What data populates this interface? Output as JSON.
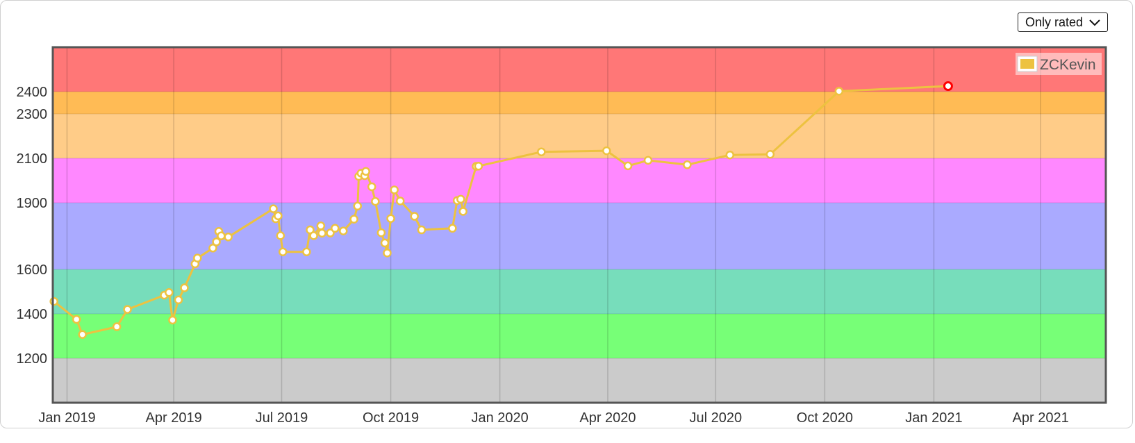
{
  "filter_select": {
    "value": "Only rated",
    "options": [
      "Only rated"
    ]
  },
  "chart_data": {
    "type": "line",
    "legend": {
      "entries": [
        "ZCKevin"
      ],
      "placement": "top-right"
    },
    "grid": true,
    "x_axis": {
      "type": "date",
      "range": [
        "2018-12-20",
        "2021-05-26"
      ],
      "tick_labels": [
        "Jan 2019",
        "Apr 2019",
        "Jul 2019",
        "Oct 2019",
        "Jan 2020",
        "Apr 2020",
        "Jul 2020",
        "Oct 2020",
        "Jan 2021",
        "Apr 2021"
      ],
      "ticks": [
        "2019-01-01",
        "2019-04-01",
        "2019-07-01",
        "2019-10-01",
        "2020-01-01",
        "2020-04-01",
        "2020-07-01",
        "2020-10-01",
        "2021-01-01",
        "2021-04-01"
      ]
    },
    "y_axis": {
      "range": [
        1000,
        2600
      ],
      "tick_labels": [
        "1200",
        "1400",
        "1600",
        "1900",
        "2100",
        "2300",
        "2400"
      ],
      "ticks": [
        1200,
        1400,
        1600,
        1900,
        2100,
        2300,
        2400
      ]
    },
    "rating_bands": [
      {
        "from": 0,
        "to": 1200,
        "color": "#cbcbcb"
      },
      {
        "from": 1200,
        "to": 1400,
        "color": "#77ff77"
      },
      {
        "from": 1400,
        "to": 1600,
        "color": "#77ddbb"
      },
      {
        "from": 1600,
        "to": 1900,
        "color": "#aaaaff"
      },
      {
        "from": 1900,
        "to": 2100,
        "color": "#ff88ff"
      },
      {
        "from": 2100,
        "to": 2300,
        "color": "#ffcc88"
      },
      {
        "from": 2300,
        "to": 2400,
        "color": "#ffbb55"
      },
      {
        "from": 2400,
        "to": 5000,
        "color": "#ff7777"
      }
    ],
    "series_color": "#edc240",
    "highlight_color": "#ff0000",
    "series": [
      {
        "name": "ZCKevin",
        "points": [
          [
            "2018-12-21",
            1456
          ],
          [
            "2019-01-09",
            1375
          ],
          [
            "2019-01-14",
            1307
          ],
          [
            "2019-02-12",
            1342
          ],
          [
            "2019-02-21",
            1420
          ],
          [
            "2019-03-24",
            1484
          ],
          [
            "2019-03-28",
            1496
          ],
          [
            "2019-03-31",
            1372
          ],
          [
            "2019-04-05",
            1463
          ],
          [
            "2019-04-10",
            1517
          ],
          [
            "2019-04-19",
            1625
          ],
          [
            "2019-04-21",
            1651
          ],
          [
            "2019-05-04",
            1696
          ],
          [
            "2019-05-07",
            1724
          ],
          [
            "2019-05-09",
            1771
          ],
          [
            "2019-05-11",
            1751
          ],
          [
            "2019-05-17",
            1746
          ],
          [
            "2019-06-24",
            1873
          ],
          [
            "2019-06-26",
            1828
          ],
          [
            "2019-06-28",
            1841
          ],
          [
            "2019-06-30",
            1752
          ],
          [
            "2019-07-02",
            1679
          ],
          [
            "2019-07-22",
            1679
          ],
          [
            "2019-07-25",
            1778
          ],
          [
            "2019-07-28",
            1752
          ],
          [
            "2019-08-03",
            1796
          ],
          [
            "2019-08-04",
            1763
          ],
          [
            "2019-08-11",
            1764
          ],
          [
            "2019-08-15",
            1785
          ],
          [
            "2019-08-22",
            1773
          ],
          [
            "2019-08-31",
            1826
          ],
          [
            "2019-09-03",
            1885
          ],
          [
            "2019-09-04",
            2019
          ],
          [
            "2019-09-06",
            2033
          ],
          [
            "2019-09-09",
            2022
          ],
          [
            "2019-09-10",
            2041
          ],
          [
            "2019-09-15",
            1972
          ],
          [
            "2019-09-18",
            1906
          ],
          [
            "2019-09-23",
            1765
          ],
          [
            "2019-09-26",
            1719
          ],
          [
            "2019-09-28",
            1674
          ],
          [
            "2019-10-01",
            1829
          ],
          [
            "2019-10-04",
            1958
          ],
          [
            "2019-10-09",
            1908
          ],
          [
            "2019-10-21",
            1839
          ],
          [
            "2019-10-27",
            1778
          ],
          [
            "2019-11-22",
            1785
          ],
          [
            "2019-11-26",
            1910
          ],
          [
            "2019-11-29",
            1916
          ],
          [
            "2019-12-01",
            1861
          ],
          [
            "2019-12-12",
            2064
          ],
          [
            "2019-12-14",
            2065
          ],
          [
            "2020-02-05",
            2129
          ],
          [
            "2020-03-31",
            2134
          ],
          [
            "2020-04-18",
            2066
          ],
          [
            "2020-05-05",
            2091
          ],
          [
            "2020-06-07",
            2071
          ],
          [
            "2020-07-13",
            2115
          ],
          [
            "2020-08-16",
            2118
          ],
          [
            "2020-10-13",
            2402
          ],
          [
            "2021-01-13",
            2425
          ]
        ]
      }
    ],
    "highlighted_point": [
      "2021-01-13",
      2425
    ]
  }
}
